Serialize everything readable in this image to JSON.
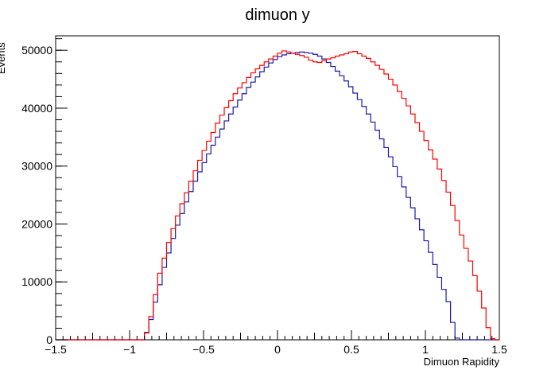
{
  "chart_data": {
    "type": "line",
    "title": "dimuon y",
    "xlabel": "Dimuon Rapidity",
    "ylabel": "Events",
    "xlim": [
      -1.5,
      1.5
    ],
    "ylim": [
      0,
      52500
    ],
    "grid": false,
    "legend": "none",
    "x_ticks": [
      -1.5,
      -1,
      -0.5,
      0,
      0.5,
      1,
      1.5
    ],
    "x_tick_labels": [
      "−1.5",
      "−1",
      "−0.5",
      "0",
      "0.5",
      "1",
      "1.5"
    ],
    "y_ticks": [
      0,
      10000,
      20000,
      30000,
      40000,
      50000
    ],
    "y_tick_labels": [
      "0",
      "10000",
      "20000",
      "30000",
      "40000",
      "50000"
    ],
    "bin_edges_x": [
      -1.5,
      1.5
    ],
    "bins": 100,
    "series": [
      {
        "color": "#1a1aa6",
        "values": [
          0,
          0,
          0,
          0,
          0,
          0,
          0,
          0,
          0,
          0,
          0,
          0,
          0,
          0,
          0,
          0,
          0,
          0,
          0,
          0,
          1200,
          3500,
          6500,
          9500,
          12500,
          15000,
          17500,
          19800,
          21800,
          23800,
          25600,
          27400,
          29000,
          30600,
          32100,
          33600,
          35000,
          36400,
          37800,
          39000,
          40200,
          41400,
          42500,
          43600,
          44500,
          45400,
          46300,
          47100,
          47800,
          48400,
          48900,
          49200,
          49400,
          49500,
          49600,
          49700,
          49600,
          49500,
          49300,
          49000,
          48500,
          47900,
          47200,
          46400,
          45600,
          44700,
          43700,
          42600,
          41500,
          40300,
          39000,
          37600,
          36200,
          34700,
          33200,
          31600,
          29900,
          28200,
          26400,
          24600,
          22800,
          20900,
          19000,
          17100,
          15100,
          13000,
          10800,
          8700,
          6600,
          3000,
          300,
          0,
          0,
          0,
          0,
          0,
          0,
          0,
          0,
          0
        ]
      },
      {
        "color": "#ff0000",
        "values": [
          0,
          0,
          0,
          0,
          0,
          0,
          0,
          0,
          0,
          0,
          0,
          0,
          0,
          0,
          0,
          0,
          0,
          0,
          0,
          0,
          1300,
          4000,
          7800,
          11500,
          14100,
          16800,
          19200,
          21400,
          23500,
          25400,
          27400,
          29200,
          31000,
          32700,
          34300,
          35800,
          37400,
          38800,
          40100,
          41300,
          42500,
          43500,
          44400,
          45300,
          46100,
          46800,
          47400,
          48000,
          48500,
          49000,
          49500,
          49900,
          49700,
          49500,
          49300,
          49100,
          48800,
          48300,
          48000,
          47900,
          48200,
          48500,
          48700,
          49000,
          49200,
          49400,
          49700,
          49800,
          49400,
          49000,
          48600,
          48000,
          47400,
          46700,
          45900,
          45000,
          44000,
          42900,
          41700,
          40400,
          39000,
          37500,
          36000,
          34400,
          32800,
          31200,
          29500,
          27500,
          25500,
          23200,
          20600,
          18100,
          15800,
          13600,
          11100,
          8400,
          5500,
          2100,
          200,
          0
        ]
      }
    ]
  }
}
